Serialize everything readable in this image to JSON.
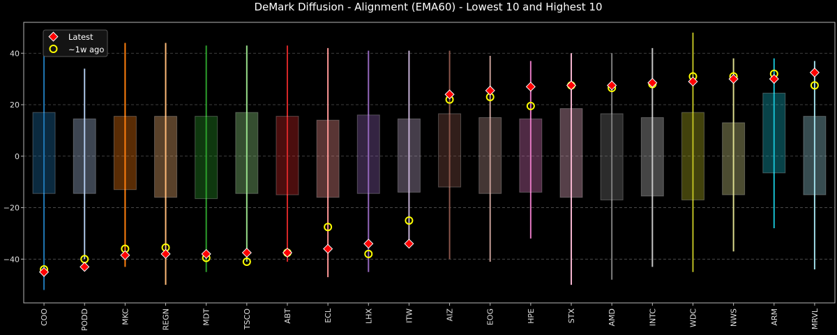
{
  "chart_data": {
    "type": "box",
    "title": "DeMark Diffusion - Alignment (EMA60) - Lowest 10 and Highest 10",
    "xlabel": "",
    "ylabel": "",
    "ylim": [
      -57,
      52
    ],
    "yticks": [
      -40,
      -20,
      0,
      20,
      40
    ],
    "ytick_labels": [
      "−40",
      "−20",
      "0",
      "20",
      "40"
    ],
    "grid": "horizontal-dashed",
    "legend_position": "top-left",
    "legend": [
      {
        "label": "Latest",
        "marker": "diamond",
        "color": "#ff0000",
        "edge": "#ffffff"
      },
      {
        "label": "~1w ago",
        "marker": "circle",
        "color": "#ffff00"
      }
    ],
    "categories": [
      "COO",
      "PODD",
      "MKC",
      "REGN",
      "MDT",
      "TSCO",
      "ABT",
      "ECL",
      "LHX",
      "ITW",
      "AIZ",
      "EOG",
      "HPE",
      "STX",
      "AMD",
      "INTC",
      "WDC",
      "NWS",
      "ARM",
      "MRVL"
    ],
    "colors": [
      "#1f77b4",
      "#aec7e8",
      "#ff7f0e",
      "#ffbb78",
      "#2ca02c",
      "#98df8a",
      "#d62728",
      "#ff9896",
      "#9467bd",
      "#c5b0d5",
      "#8c564b",
      "#c49c94",
      "#e377c2",
      "#f7b6d2",
      "#7f7f7f",
      "#c7c7c7",
      "#bcbd22",
      "#dbdb8d",
      "#17becf",
      "#9edae5"
    ],
    "range_min": [
      -52,
      -40,
      -43,
      -50,
      -45,
      -41,
      -41,
      -47,
      -45,
      -34,
      -40,
      -41,
      -32,
      -50,
      -48,
      -43,
      -45,
      -37,
      -28,
      -44
    ],
    "range_max": [
      43,
      34,
      44,
      44,
      43,
      43,
      43,
      42,
      41,
      41,
      41,
      39,
      37,
      40,
      40,
      42,
      48,
      38,
      38,
      37
    ],
    "box_low": [
      -14.5,
      -14.5,
      -13,
      -16,
      -16.5,
      -14.5,
      -15,
      -16,
      -14.5,
      -14,
      -12,
      -14.5,
      -14,
      -16,
      -17,
      -15.5,
      -17,
      -15,
      -6.5,
      -15
    ],
    "box_high": [
      17,
      14.5,
      15.5,
      15.5,
      15.5,
      17,
      15.5,
      14,
      16,
      14.5,
      16.5,
      15,
      14.5,
      18.5,
      16.5,
      15,
      17,
      13,
      24.5,
      15.5
    ],
    "latest": [
      -45,
      -43,
      -38.5,
      -38,
      -38,
      -37.5,
      -37.5,
      -36,
      -34,
      -34,
      24,
      25.5,
      27,
      27.5,
      27.5,
      28.5,
      29,
      30,
      30,
      32.5
    ],
    "week_ago": [
      -44,
      -40,
      -36,
      -35.5,
      -39.5,
      -41,
      -37.5,
      -27.5,
      -38,
      -25,
      22,
      23,
      19.5,
      27.5,
      26.5,
      28,
      31,
      31,
      32,
      27.5
    ]
  }
}
